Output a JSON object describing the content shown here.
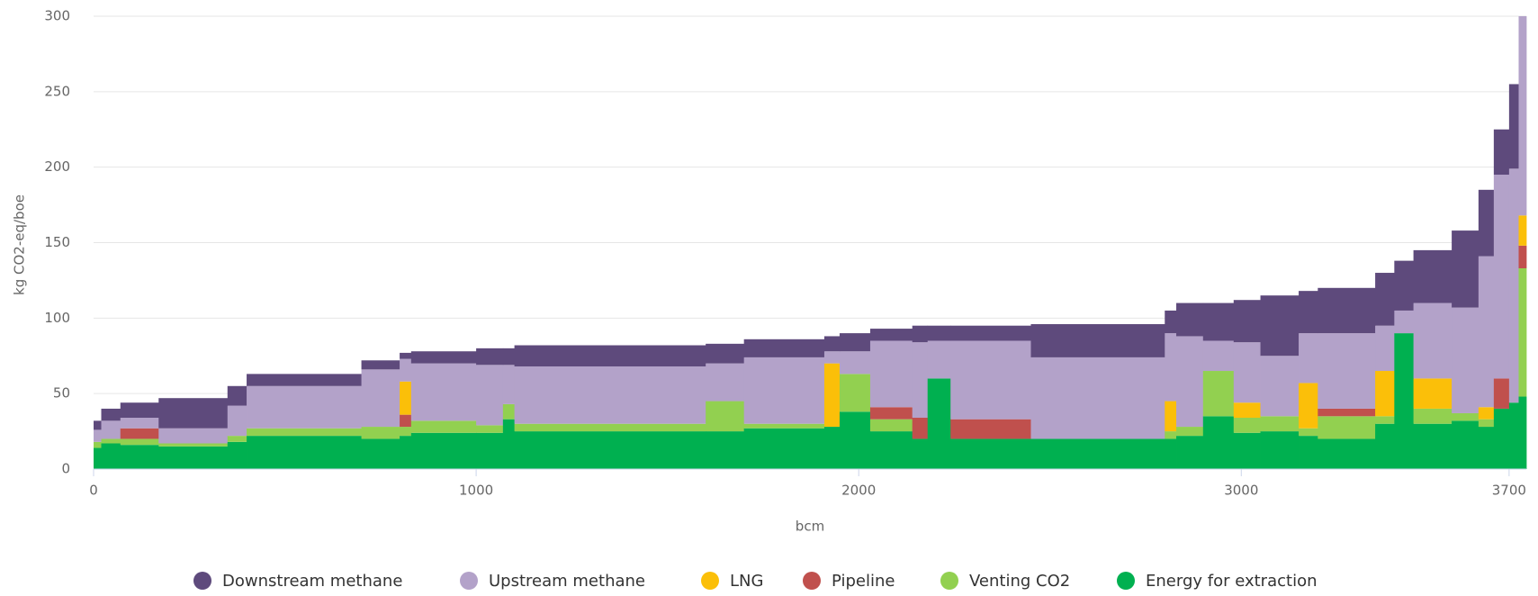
{
  "chart_data": {
    "type": "stacked_step_area",
    "x_label": "bcm",
    "y_label": "kg CO2-eq/boe",
    "xlim": [
      0,
      3745
    ],
    "xticks": [
      0,
      1000,
      2000,
      3000,
      3700
    ],
    "ylim": [
      0,
      300
    ],
    "yticks": [
      0,
      50,
      100,
      150,
      200,
      250,
      300
    ],
    "grid": true,
    "legend": "bottom",
    "x": [
      0,
      20,
      70,
      170,
      350,
      400,
      700,
      800,
      830,
      1000,
      1070,
      1100,
      1600,
      1700,
      1910,
      1950,
      2030,
      2140,
      2180,
      2240,
      2450,
      2800,
      2830,
      2900,
      2980,
      3050,
      3150,
      3200,
      3350,
      3400,
      3450,
      3550,
      3620,
      3660,
      3700,
      3725
    ],
    "series": [
      {
        "name": "Energy for extraction",
        "color": "#00b050",
        "values": [
          14,
          17,
          16,
          15,
          18,
          22,
          20,
          22,
          24,
          24,
          33,
          25,
          25,
          27,
          28,
          38,
          25,
          20,
          60,
          20,
          20,
          20,
          22,
          35,
          24,
          25,
          22,
          20,
          30,
          90,
          30,
          32,
          28,
          40,
          44,
          48
        ]
      },
      {
        "name": "Venting CO2",
        "color": "#92d050",
        "values": [
          4,
          3,
          4,
          2,
          4,
          5,
          8,
          6,
          8,
          5,
          10,
          5,
          20,
          3,
          0,
          25,
          8,
          0,
          0,
          0,
          0,
          5,
          6,
          30,
          10,
          10,
          5,
          15,
          5,
          0,
          10,
          5,
          5,
          0,
          0,
          85
        ]
      },
      {
        "name": "Pipeline",
        "color": "#c0504d",
        "values": [
          0,
          0,
          7,
          0,
          0,
          0,
          0,
          8,
          0,
          0,
          0,
          0,
          0,
          0,
          0,
          0,
          8,
          14,
          0,
          13,
          0,
          0,
          0,
          0,
          0,
          0,
          0,
          5,
          0,
          0,
          0,
          0,
          0,
          20,
          0,
          15
        ]
      },
      {
        "name": "LNG",
        "color": "#fbbf09",
        "values": [
          0,
          0,
          0,
          0,
          0,
          0,
          0,
          22,
          0,
          0,
          0,
          0,
          0,
          0,
          42,
          0,
          0,
          0,
          0,
          0,
          0,
          20,
          0,
          0,
          10,
          0,
          30,
          0,
          30,
          0,
          20,
          0,
          8,
          0,
          0,
          20
        ]
      },
      {
        "name": "Upstream methane",
        "color": "#b3a2c9",
        "values": [
          8,
          12,
          7,
          10,
          20,
          28,
          38,
          15,
          38,
          40,
          26,
          38,
          25,
          44,
          8,
          15,
          44,
          50,
          25,
          52,
          54,
          45,
          60,
          20,
          40,
          40,
          33,
          50,
          30,
          15,
          50,
          70,
          100,
          135,
          155,
          132
        ]
      },
      {
        "name": "Downstream methane",
        "color": "#5e4a7c",
        "values": [
          6,
          8,
          10,
          20,
          13,
          8,
          6,
          4,
          8,
          11,
          11,
          14,
          13,
          12,
          10,
          12,
          8,
          11,
          10,
          10,
          22,
          15,
          22,
          25,
          28,
          40,
          28,
          30,
          35,
          33,
          35,
          51,
          44,
          30,
          56,
          0
        ]
      }
    ]
  }
}
